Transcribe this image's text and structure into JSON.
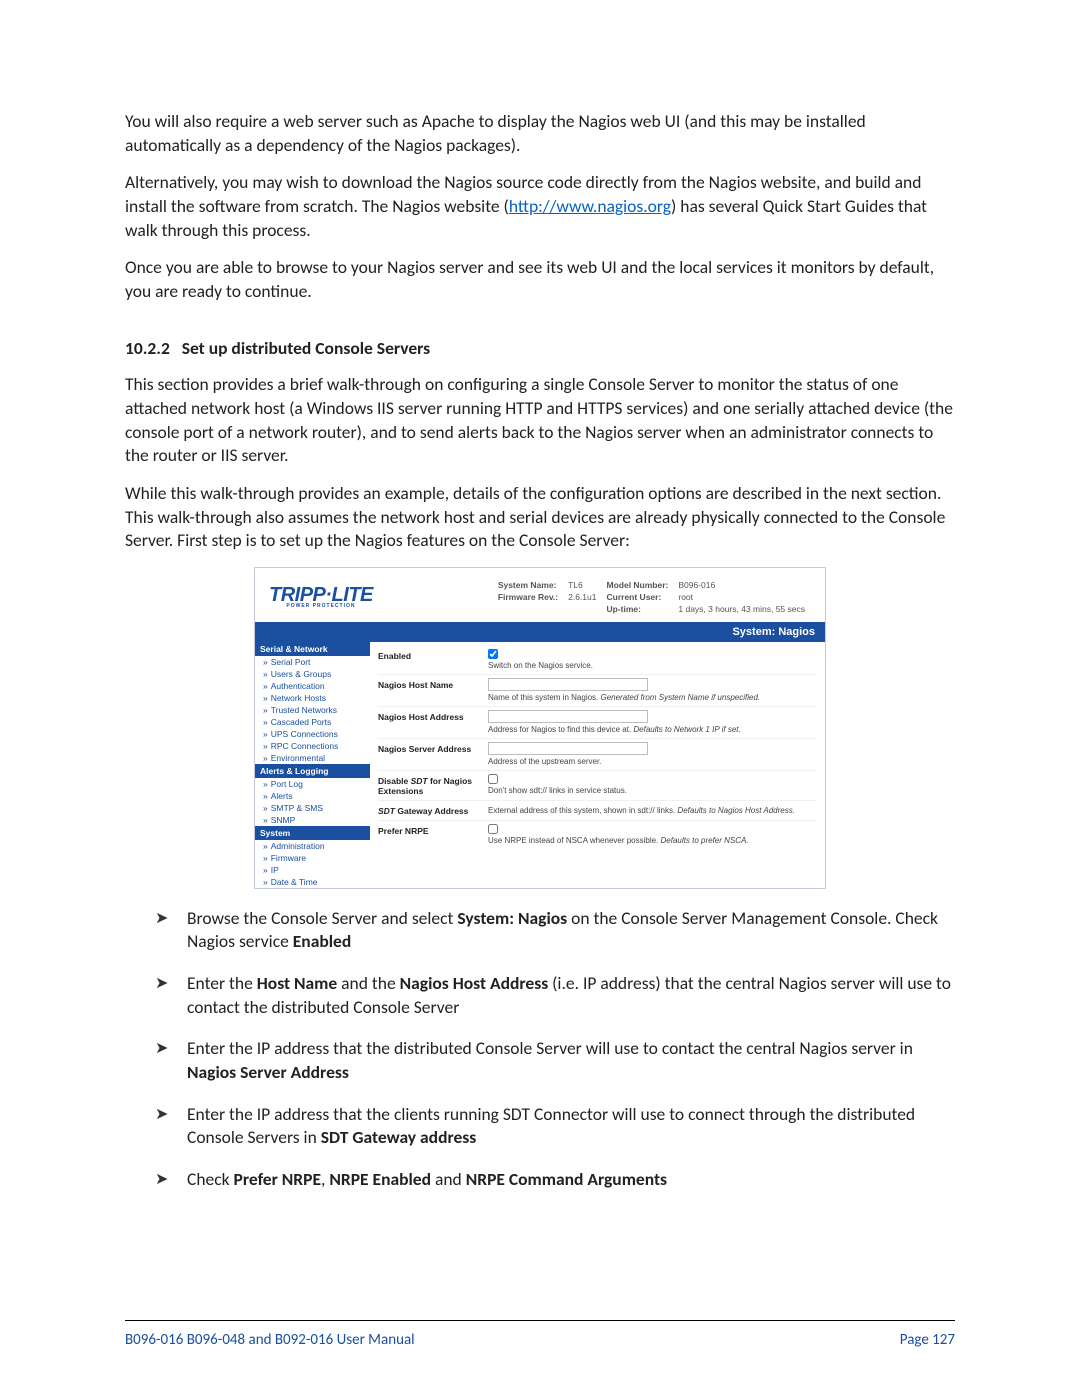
{
  "paragraphs": {
    "p1": "You will also require a web server such as Apache to display the Nagios web UI (and this may be installed automatically as a dependency of the Nagios packages).",
    "p2a": "Alternatively, you may wish to download the Nagios source code directly from the Nagios website, and build and install the software from scratch. The Nagios website (",
    "p2link": "http://www.nagios.org",
    "p2b": ") has several Quick Start Guides that walk through this process.",
    "p3": "Once you are able to browse to your Nagios server and see its web UI and the local services it monitors by default, you are ready to continue.",
    "heading_num": "10.2.2",
    "heading_text": "Set up distributed Console Servers",
    "p4": "This section provides a brief walk-through on configuring a single Console Server to monitor the status of one attached network host (a Windows IIS server running HTTP and HTTPS services) and one serially attached device (the console port of a network router), and to send alerts back to the Nagios server when an administrator connects to the router or IIS server.",
    "p5": "While this walk-through provides an example, details of the configuration options are described in the next section. This walk-through also assumes the network host and serial devices are already physically connected to the Console Server. First step is to set up the Nagios features on the Console Server:"
  },
  "screenshot": {
    "logo_top": "TRIPP·LITE",
    "logo_bottom": "POWER PROTECTION",
    "sysinfo": {
      "sysname_lbl": "System Name:",
      "sysname_val": "TL6",
      "model_lbl": "Model Number:",
      "model_val": "B096-016",
      "fw_lbl": "Firmware Rev.:",
      "fw_val": "2.6.1u1",
      "user_lbl": "Current User:",
      "user_val": "root",
      "uptime_lbl": "Up-time:",
      "uptime_val": "1 days, 3 hours, 43 mins, 55 secs"
    },
    "bluebar": "System: Nagios",
    "nav": {
      "h1": "Serial & Network",
      "g1": [
        "Serial Port",
        "Users & Groups",
        "Authentication",
        "Network Hosts",
        "Trusted Networks",
        "Cascaded Ports",
        "UPS Connections",
        "RPC Connections",
        "Environmental"
      ],
      "h2": "Alerts & Logging",
      "g2": [
        "Port Log",
        "Alerts",
        "SMTP & SMS",
        "SNMP"
      ],
      "h3": "System",
      "g3": [
        "Administration",
        "Firmware",
        "IP",
        "Date & Time"
      ]
    },
    "form": [
      {
        "label": "Enabled",
        "type": "checkbox",
        "checked": true,
        "hint": "Switch on the Nagios service.",
        "ital": ""
      },
      {
        "label": "Nagios Host Name",
        "type": "text",
        "hint": "Name of this system in Nagios. ",
        "ital": "Generated from System Name if unspecified."
      },
      {
        "label": "Nagios Host Address",
        "type": "text",
        "hint": "Address for Nagios to find this device at. ",
        "ital": "Defaults to Network 1 IP if set."
      },
      {
        "label": "Nagios Server Address",
        "type": "text",
        "hint": "Address of the upstream server.",
        "ital": ""
      },
      {
        "label": "Disable SDT for Nagios Extensions",
        "type": "checkbox",
        "checked": false,
        "hint": "Don't show sdt:// links in service status.",
        "ital": ""
      },
      {
        "label": "SDT Gateway Address",
        "type": "text_noinput",
        "hint": "External address of this system, shown in sdt:// links. ",
        "ital": "Defaults to Nagios Host Address."
      },
      {
        "label": "Prefer NRPE",
        "type": "checkbox",
        "checked": false,
        "hint": "Use NRPE instead of NSCA whenever possible. ",
        "ital": "Defaults to prefer NSCA."
      }
    ]
  },
  "bullets": {
    "b1a": "Browse the Console Server and select ",
    "b1b": "System: Nagios",
    "b1c": " on the Console Server Management Console. Check Nagios service ",
    "b1d": "Enabled",
    "b2a": "Enter the ",
    "b2b": "Host Name",
    "b2c": " and the ",
    "b2d": "Nagios Host Address",
    "b2e": " (i.e. IP address) that the central Nagios server will use to contact the distributed Console Server",
    "b3a": "Enter the IP address that the distributed Console Server will use to contact the central Nagios server in ",
    "b3b": "Nagios Server Address",
    "b4a": "Enter the IP address that the clients running SDT Connector will use to connect through the distributed Console Servers in ",
    "b4b": "SDT Gateway address",
    "b5a": "Check ",
    "b5b": "Prefer NRPE",
    "b5c": ", ",
    "b5d": "NRPE Enabled",
    "b5e": " and ",
    "b5f": "NRPE Command Arguments"
  },
  "footer": {
    "left": "B096-016 B096-048 and B092-016 User Manual",
    "right": "Page 127"
  }
}
